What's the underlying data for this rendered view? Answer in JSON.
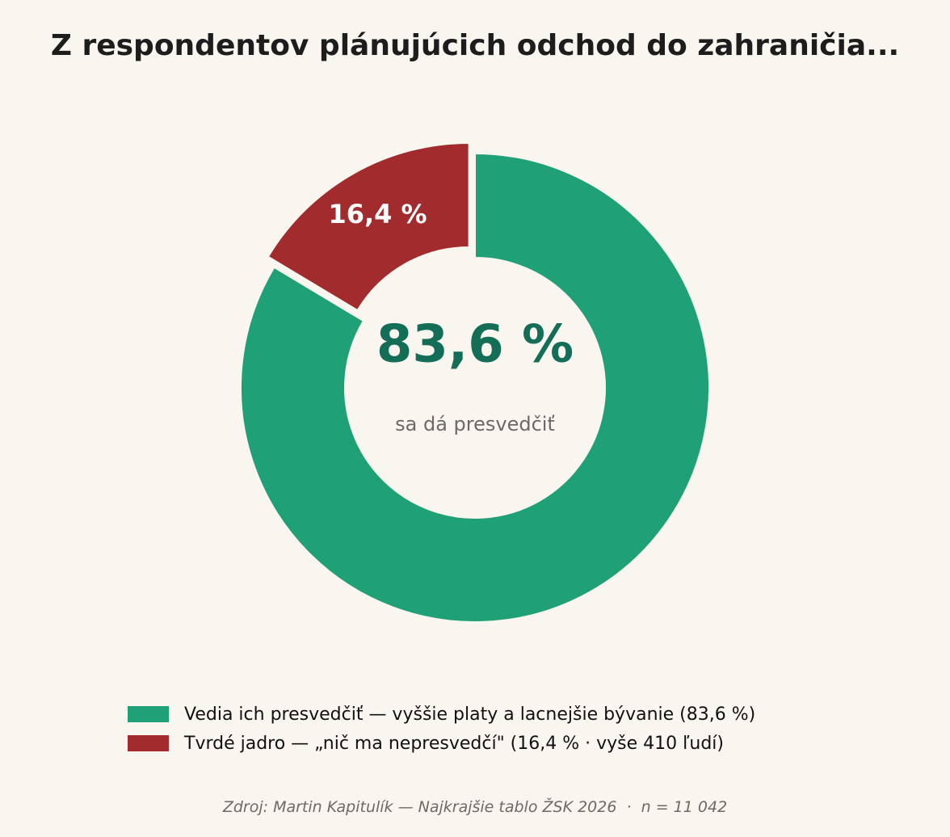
{
  "chart_data": {
    "type": "pie",
    "title": "Z respondentov plánujúcich odchod do zahraničia...",
    "slices": [
      {
        "label": "Vedia ich presvedčiť — vyššie platy a lacnejšie bývanie (83,6 %)",
        "value": 83.6,
        "color": "#1fa077",
        "exploded": false
      },
      {
        "label": "Tvrdé jadro — „nič ma nepresvedčí\" (16,4 % · vyše 410 ľudí)",
        "value": 16.4,
        "color": "#a12b2d",
        "exploded": true,
        "data_label": "16,4 %"
      }
    ],
    "donut": true,
    "center_value": "83,6 %",
    "center_caption": "sa dá presvedčiť",
    "center_value_color": "#146e57",
    "legend_position": "bottom",
    "source": "Zdroj: Martin Kapitulík — Najkrajšie tablo ŽSK 2026  ·  n = 11 042"
  }
}
